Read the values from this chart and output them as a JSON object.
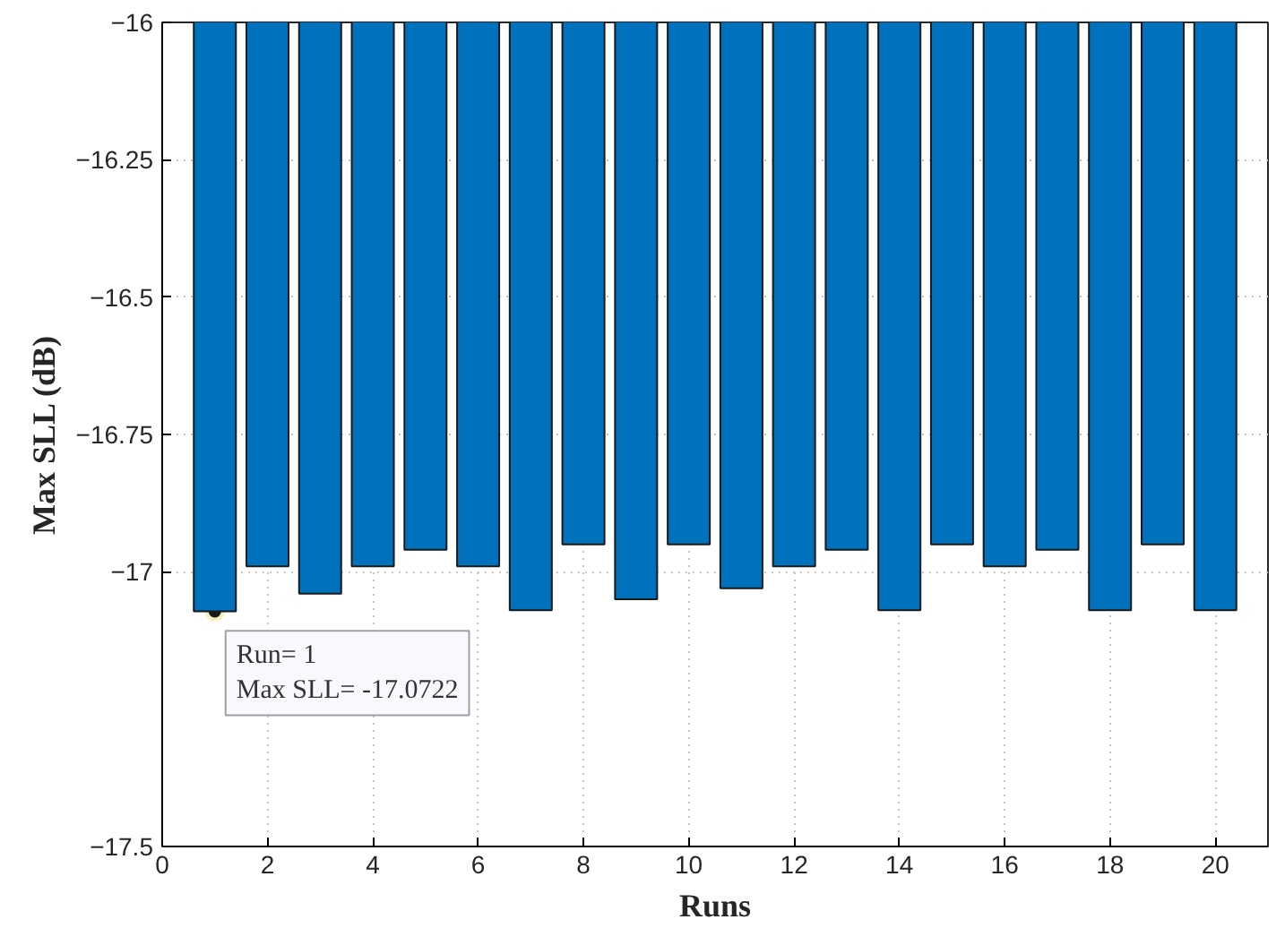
{
  "chart_data": {
    "type": "bar",
    "xlabel": "Runs",
    "ylabel": "Max SLL (dB)",
    "x": [
      1,
      2,
      3,
      4,
      5,
      6,
      7,
      8,
      9,
      10,
      11,
      12,
      13,
      14,
      15,
      16,
      17,
      18,
      19,
      20
    ],
    "values": [
      -17.0722,
      -16.99,
      -17.04,
      -16.99,
      -16.96,
      -16.99,
      -17.07,
      -16.95,
      -17.05,
      -16.95,
      -17.03,
      -16.99,
      -16.96,
      -17.07,
      -16.95,
      -16.99,
      -16.96,
      -17.07,
      -16.95,
      -17.07
    ],
    "color": "#0072bd",
    "xlim": [
      0,
      21
    ],
    "xticks": [
      0,
      2,
      4,
      6,
      8,
      10,
      12,
      14,
      16,
      18,
      20
    ],
    "ylim": [
      -17.5,
      -16
    ],
    "yticks": [
      -17.5,
      -17,
      -16.75,
      -16.5,
      -16.25,
      -16
    ],
    "grid": true,
    "annotations": [
      {
        "text": "Run= 1\nMax SLL= -17.0722",
        "x": 1,
        "y": -17.0722
      }
    ]
  }
}
